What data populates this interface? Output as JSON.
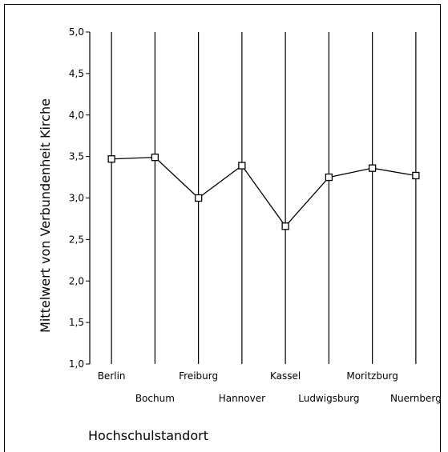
{
  "chart_data": {
    "type": "line",
    "xlabel": "Hochschulstandort",
    "ylabel": "Mittelwert von Verbundenheit Kirche",
    "categories": [
      "Berlin",
      "Bochum",
      "Freiburg",
      "Hannover",
      "Kassel",
      "Ludwigsburg",
      "Moritzburg",
      "Nuernberg"
    ],
    "values": [
      3.47,
      3.49,
      3.0,
      3.39,
      2.66,
      3.25,
      3.36,
      3.27
    ],
    "ylim": [
      1.0,
      5.0
    ],
    "yticks": [
      "1,0",
      "1,5",
      "2,0",
      "2,5",
      "3,0",
      "3,5",
      "4,0",
      "4,5",
      "5,0"
    ],
    "grid": "vertical lines at each category",
    "marker": "open square",
    "line_color": "#000000"
  }
}
